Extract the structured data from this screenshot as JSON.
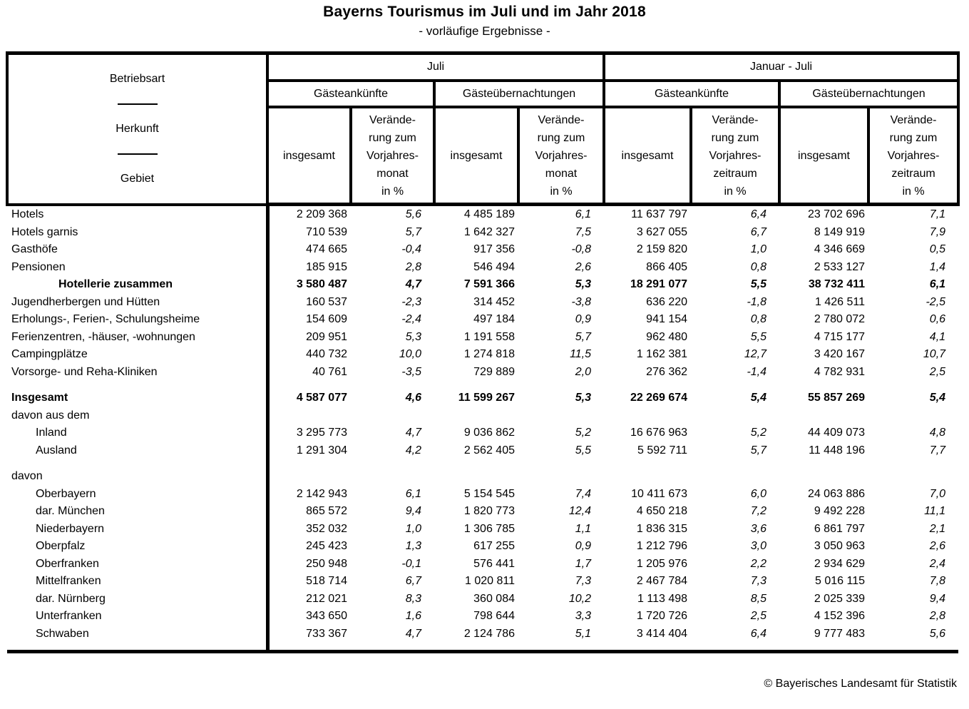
{
  "title": "Bayerns Tourismus im Juli und im Jahr 2018",
  "subtitle": "- vorläufige Ergebnisse -",
  "colors": {
    "text": "#000000",
    "background": "#ffffff"
  },
  "header": {
    "row_label_top": "Betriebsart",
    "row_label_mid": "Herkunft",
    "row_label_bottom": "Gebiet",
    "period_month": "Juli",
    "period_range": "Januar - Juli",
    "arrivals": "Gästeankünfte",
    "overnights": "Gästeübernachtungen",
    "total": "insgesamt",
    "change_month": "Verände-\nrung zum\nVorjahres-\nmonat\nin %",
    "change_period": "Verände-\nrung zum\nVorjahres-\nzeitraum\nin %"
  },
  "table": {
    "rows": [
      {
        "label": "Hotels",
        "indent": 0,
        "bold": false,
        "values": [
          "2 209 368",
          "5,6",
          "4 485 189",
          "6,1",
          "11 637 797",
          "6,4",
          "23 702 696",
          "7,1"
        ]
      },
      {
        "label": "Hotels garnis",
        "indent": 0,
        "bold": false,
        "values": [
          "710 539",
          "5,7",
          "1 642 327",
          "7,5",
          "3 627 055",
          "6,7",
          "8 149 919",
          "7,9"
        ]
      },
      {
        "label": "Gasthöfe",
        "indent": 0,
        "bold": false,
        "values": [
          "474 665",
          "-0,4",
          "917 356",
          "-0,8",
          "2 159 820",
          "1,0",
          "4 346 669",
          "0,5"
        ]
      },
      {
        "label": "Pensionen",
        "indent": 0,
        "bold": false,
        "values": [
          "185 915",
          "2,8",
          "546 494",
          "2,6",
          "866 405",
          "0,8",
          "2 533 127",
          "1,4"
        ]
      },
      {
        "label": "Hotellerie zusammen",
        "indent": 2,
        "bold": true,
        "values": [
          "3 580 487",
          "4,7",
          "7 591 366",
          "5,3",
          "18 291 077",
          "5,5",
          "38 732 411",
          "6,1"
        ]
      },
      {
        "label": "Jugendherbergen und Hütten",
        "indent": 0,
        "bold": false,
        "values": [
          "160 537",
          "-2,3",
          "314 452",
          "-3,8",
          "636 220",
          "-1,8",
          "1 426 511",
          "-2,5"
        ]
      },
      {
        "label": "Erholungs-, Ferien-, Schulungsheime",
        "indent": 0,
        "bold": false,
        "values": [
          "154 609",
          "-2,4",
          "497 184",
          "0,9",
          "941 154",
          "0,8",
          "2 780 072",
          "0,6"
        ]
      },
      {
        "label": "Ferienzentren, -häuser, -wohnungen",
        "indent": 0,
        "bold": false,
        "values": [
          "209 951",
          "5,3",
          "1 191 558",
          "5,7",
          "962 480",
          "5,5",
          "4 715 177",
          "4,1"
        ]
      },
      {
        "label": "Campingplätze",
        "indent": 0,
        "bold": false,
        "values": [
          "440 732",
          "10,0",
          "1 274 818",
          "11,5",
          "1 162 381",
          "12,7",
          "3 420 167",
          "10,7"
        ]
      },
      {
        "label": "Vorsorge- und Reha-Kliniken",
        "indent": 0,
        "bold": false,
        "values": [
          "40 761",
          "-3,5",
          "729 889",
          "2,0",
          "276 362",
          "-1,4",
          "4 782 931",
          "2,5"
        ]
      },
      {
        "spacer": true
      },
      {
        "label": "Insgesamt",
        "indent": 0,
        "bold": true,
        "values": [
          "4 587 077",
          "4,6",
          "11 599 267",
          "5,3",
          "22 269 674",
          "5,4",
          "55 857 269",
          "5,4"
        ]
      },
      {
        "label": "davon aus dem",
        "indent": 0,
        "bold": false,
        "values": []
      },
      {
        "label": "Inland",
        "indent": 1,
        "bold": false,
        "values": [
          "3 295 773",
          "4,7",
          "9 036 862",
          "5,2",
          "16 676 963",
          "5,2",
          "44 409 073",
          "4,8"
        ]
      },
      {
        "label": "Ausland",
        "indent": 1,
        "bold": false,
        "values": [
          "1 291 304",
          "4,2",
          "2 562 405",
          "5,5",
          "5 592 711",
          "5,7",
          "11 448 196",
          "7,7"
        ]
      },
      {
        "spacer": true
      },
      {
        "label": "davon",
        "indent": 0,
        "bold": false,
        "values": []
      },
      {
        "label": "Oberbayern",
        "indent": 1,
        "bold": false,
        "values": [
          "2 142 943",
          "6,1",
          "5 154 545",
          "7,4",
          "10 411 673",
          "6,0",
          "24 063 886",
          "7,0"
        ]
      },
      {
        "label": "dar. München",
        "indent": 1,
        "bold": false,
        "values": [
          "865 572",
          "9,4",
          "1 820 773",
          "12,4",
          "4 650 218",
          "7,2",
          "9 492 228",
          "11,1"
        ]
      },
      {
        "label": "Niederbayern",
        "indent": 1,
        "bold": false,
        "values": [
          "352 032",
          "1,0",
          "1 306 785",
          "1,1",
          "1 836 315",
          "3,6",
          "6 861 797",
          "2,1"
        ]
      },
      {
        "label": "Oberpfalz",
        "indent": 1,
        "bold": false,
        "values": [
          "245 423",
          "1,3",
          "617 255",
          "0,9",
          "1 212 796",
          "3,0",
          "3 050 963",
          "2,6"
        ]
      },
      {
        "label": "Oberfranken",
        "indent": 1,
        "bold": false,
        "values": [
          "250 948",
          "-0,1",
          "576 441",
          "1,7",
          "1 205 976",
          "2,2",
          "2 934 629",
          "2,4"
        ]
      },
      {
        "label": "Mittelfranken",
        "indent": 1,
        "bold": false,
        "values": [
          "518 714",
          "6,7",
          "1 020 811",
          "7,3",
          "2 467 784",
          "7,3",
          "5 016 115",
          "7,8"
        ]
      },
      {
        "label": "dar. Nürnberg",
        "indent": 1,
        "bold": false,
        "values": [
          "212 021",
          "8,3",
          "360 084",
          "10,2",
          "1 113 498",
          "8,5",
          "2 025 339",
          "9,4"
        ]
      },
      {
        "label": "Unterfranken",
        "indent": 1,
        "bold": false,
        "values": [
          "343 650",
          "1,6",
          "798 644",
          "3,3",
          "1 720 726",
          "2,5",
          "4 152 396",
          "2,8"
        ]
      },
      {
        "label": "Schwaben",
        "indent": 1,
        "bold": false,
        "values": [
          "733 367",
          "4,7",
          "2 124 786",
          "5,1",
          "3 414 404",
          "6,4",
          "9 777 483",
          "5,6"
        ]
      },
      {
        "spacer": true,
        "end": true
      }
    ]
  },
  "footer": {
    "copyright": "© Bayerisches Landesamt für Statistik"
  }
}
